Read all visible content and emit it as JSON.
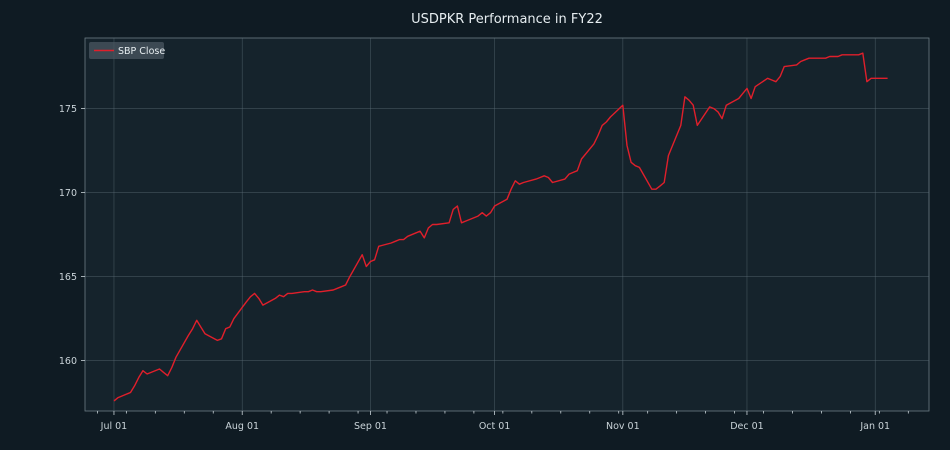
{
  "colors": {
    "background": "#0f1b23",
    "plot_area": "#15232c",
    "series_line": "#e01f2b",
    "legend_box": "#4a5760"
  },
  "chart_data": {
    "type": "line",
    "title": "USDPKR Performance in FY22",
    "xlabel": "",
    "ylabel": "",
    "xlim": [
      "2021-06-24",
      "2022-01-14"
    ],
    "ylim": [
      157.0,
      179.2
    ],
    "grid": true,
    "legend_position": "top-left",
    "x_ticks": [
      {
        "date": "2021-07-01",
        "label": "Jul 01"
      },
      {
        "date": "2021-08-01",
        "label": "Aug 01"
      },
      {
        "date": "2021-09-01",
        "label": "Sep 01"
      },
      {
        "date": "2021-10-01",
        "label": "Oct 01"
      },
      {
        "date": "2021-11-01",
        "label": "Nov 01"
      },
      {
        "date": "2021-12-01",
        "label": "Dec 01"
      },
      {
        "date": "2022-01-01",
        "label": "Jan 01"
      }
    ],
    "y_ticks": [
      160,
      165,
      170,
      175
    ],
    "series": [
      {
        "name": "SBP Close",
        "color": "#e01f2b",
        "x": [
          "2021-07-01",
          "2021-07-02",
          "2021-07-05",
          "2021-07-06",
          "2021-07-07",
          "2021-07-08",
          "2021-07-09",
          "2021-07-12",
          "2021-07-13",
          "2021-07-14",
          "2021-07-15",
          "2021-07-16",
          "2021-07-19",
          "2021-07-20",
          "2021-07-21",
          "2021-07-22",
          "2021-07-23",
          "2021-07-26",
          "2021-07-27",
          "2021-07-28",
          "2021-07-29",
          "2021-07-30",
          "2021-08-02",
          "2021-08-03",
          "2021-08-04",
          "2021-08-05",
          "2021-08-06",
          "2021-08-09",
          "2021-08-10",
          "2021-08-11",
          "2021-08-12",
          "2021-08-13",
          "2021-08-16",
          "2021-08-17",
          "2021-08-18",
          "2021-08-19",
          "2021-08-20",
          "2021-08-23",
          "2021-08-24",
          "2021-08-25",
          "2021-08-26",
          "2021-08-27",
          "2021-08-30",
          "2021-08-31",
          "2021-09-01",
          "2021-09-02",
          "2021-09-03",
          "2021-09-06",
          "2021-09-07",
          "2021-09-08",
          "2021-09-09",
          "2021-09-10",
          "2021-09-13",
          "2021-09-14",
          "2021-09-15",
          "2021-09-16",
          "2021-09-17",
          "2021-09-20",
          "2021-09-21",
          "2021-09-22",
          "2021-09-23",
          "2021-09-24",
          "2021-09-27",
          "2021-09-28",
          "2021-09-29",
          "2021-09-30",
          "2021-10-01",
          "2021-10-04",
          "2021-10-05",
          "2021-10-06",
          "2021-10-07",
          "2021-10-08",
          "2021-10-11",
          "2021-10-12",
          "2021-10-13",
          "2021-10-14",
          "2021-10-15",
          "2021-10-18",
          "2021-10-19",
          "2021-10-20",
          "2021-10-21",
          "2021-10-22",
          "2021-10-25",
          "2021-10-26",
          "2021-10-27",
          "2021-10-28",
          "2021-10-29",
          "2021-11-01",
          "2021-11-02",
          "2021-11-03",
          "2021-11-04",
          "2021-11-05",
          "2021-11-08",
          "2021-11-09",
          "2021-11-10",
          "2021-11-11",
          "2021-11-12",
          "2021-11-15",
          "2021-11-16",
          "2021-11-17",
          "2021-11-18",
          "2021-11-19",
          "2021-11-22",
          "2021-11-23",
          "2021-11-24",
          "2021-11-25",
          "2021-11-26",
          "2021-11-29",
          "2021-11-30",
          "2021-12-01",
          "2021-12-02",
          "2021-12-03",
          "2021-12-06",
          "2021-12-07",
          "2021-12-08",
          "2021-12-09",
          "2021-12-10",
          "2021-12-13",
          "2021-12-14",
          "2021-12-15",
          "2021-12-16",
          "2021-12-17",
          "2021-12-20",
          "2021-12-21",
          "2021-12-22",
          "2021-12-23",
          "2021-12-24",
          "2021-12-27",
          "2021-12-28",
          "2021-12-29",
          "2021-12-30",
          "2021-12-31",
          "2022-01-03",
          "2022-01-04"
        ],
        "y": [
          157.6,
          157.8,
          158.1,
          158.5,
          159.0,
          159.4,
          159.2,
          159.5,
          159.3,
          159.1,
          159.6,
          160.2,
          161.5,
          161.9,
          162.4,
          162.0,
          161.6,
          161.2,
          161.3,
          161.9,
          162.0,
          162.5,
          163.5,
          163.8,
          164.0,
          163.7,
          163.3,
          163.7,
          163.9,
          163.8,
          164.0,
          164.0,
          164.1,
          164.1,
          164.2,
          164.1,
          164.1,
          164.2,
          164.3,
          164.4,
          164.5,
          165.0,
          166.3,
          165.6,
          165.9,
          166.0,
          166.8,
          167.0,
          167.1,
          167.2,
          167.2,
          167.4,
          167.7,
          167.3,
          167.9,
          168.1,
          168.1,
          168.2,
          169.0,
          169.2,
          168.2,
          168.3,
          168.6,
          168.8,
          168.6,
          168.8,
          169.2,
          169.6,
          170.2,
          170.7,
          170.5,
          170.6,
          170.8,
          170.9,
          171.0,
          170.9,
          170.6,
          170.8,
          171.1,
          171.2,
          171.3,
          172.0,
          172.9,
          173.4,
          174.0,
          174.2,
          174.5,
          175.2,
          172.8,
          171.8,
          171.6,
          171.5,
          170.2,
          170.2,
          170.4,
          170.6,
          172.2,
          174.0,
          175.7,
          175.5,
          175.2,
          174.0,
          175.1,
          175.0,
          174.8,
          174.4,
          175.2,
          175.6,
          175.9,
          176.2,
          175.6,
          176.3,
          176.8,
          176.7,
          176.6,
          176.9,
          177.5,
          177.6,
          177.8,
          177.9,
          178.0,
          178.0,
          178.0,
          178.1,
          178.1,
          178.1,
          178.2,
          178.2,
          178.2,
          178.3,
          176.6,
          176.8,
          176.8,
          176.8
        ]
      }
    ]
  }
}
